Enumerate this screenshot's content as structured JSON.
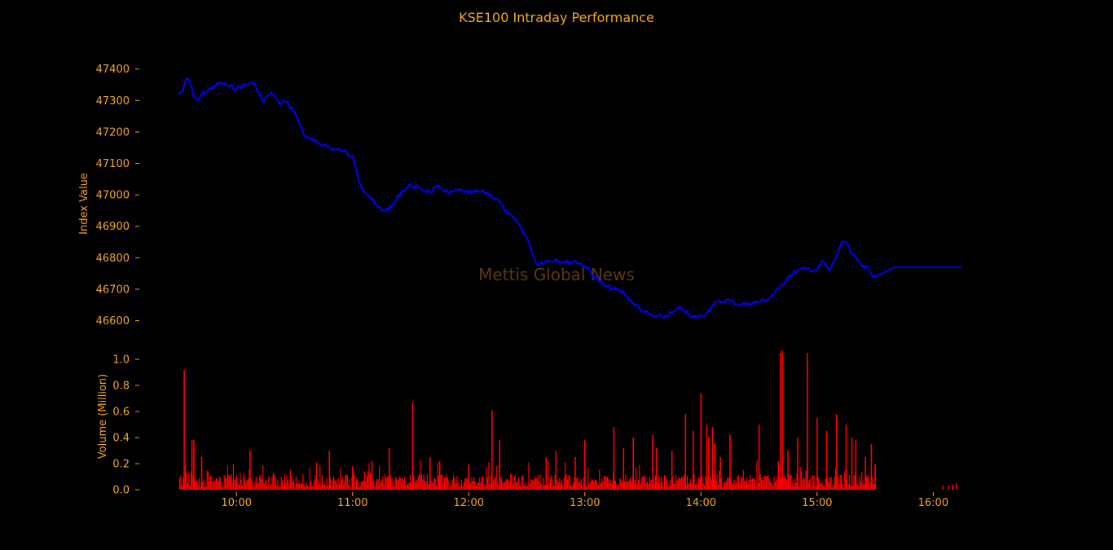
{
  "chart_data": {
    "type": "line",
    "title": "KSE100 Intraday Performance",
    "watermark": "Mettis Global News",
    "colors": {
      "text": "#f5a623",
      "price_line": "#0000ff",
      "volume_bars": "#ff0000",
      "background": "#000000",
      "watermark": "#5a3a12"
    },
    "grid": false,
    "xlim": [
      "09:30",
      "16:15"
    ],
    "x_ticks": [
      "10:00",
      "11:00",
      "12:00",
      "13:00",
      "14:00",
      "15:00",
      "16:00"
    ],
    "panels": [
      {
        "id": "price",
        "ylabel": "Index Value",
        "ylim": [
          46560,
          47420
        ],
        "y_ticks": [
          "46600",
          "46700",
          "46800",
          "46900",
          "47000",
          "47100",
          "47200",
          "47300",
          "47400"
        ],
        "series": [
          {
            "type": "line",
            "x": [
              "09:30",
              "09:32",
              "09:34",
              "09:36",
              "09:38",
              "09:40",
              "09:42",
              "09:45",
              "09:48",
              "09:52",
              "09:56",
              "10:00",
              "10:04",
              "10:08",
              "10:10",
              "10:12",
              "10:14",
              "10:16",
              "10:18",
              "10:20",
              "10:22",
              "10:24",
              "10:27",
              "10:30",
              "10:33",
              "10:36",
              "10:40",
              "10:45",
              "10:50",
              "10:55",
              "11:00",
              "11:02",
              "11:04",
              "11:06",
              "11:08",
              "11:10",
              "11:13",
              "11:16",
              "11:20",
              "11:25",
              "11:30",
              "11:35",
              "11:40",
              "11:45",
              "11:50",
              "11:55",
              "12:00",
              "12:05",
              "12:10",
              "12:15",
              "12:20",
              "12:25",
              "12:30",
              "12:35",
              "12:40",
              "12:45",
              "12:50",
              "12:55",
              "13:00",
              "13:05",
              "13:10",
              "13:15",
              "13:20",
              "13:25",
              "13:30",
              "13:35",
              "13:40",
              "13:45",
              "13:50",
              "13:55",
              "14:00",
              "14:03",
              "14:06",
              "14:10",
              "14:15",
              "14:20",
              "14:25",
              "14:30",
              "14:35",
              "14:40",
              "14:45",
              "14:50",
              "14:55",
              "15:00",
              "15:03",
              "15:06",
              "15:09",
              "15:12",
              "15:15",
              "15:18",
              "15:21",
              "15:24",
              "15:27",
              "15:30",
              "15:40",
              "15:50",
              "16:00",
              "16:15"
            ],
            "y": [
              47320,
              47330,
              47370,
              47355,
              47310,
              47300,
              47320,
              47330,
              47345,
              47355,
              47345,
              47338,
              47350,
              47355,
              47345,
              47320,
              47295,
              47315,
              47325,
              47310,
              47290,
              47300,
              47285,
              47265,
              47220,
              47180,
              47170,
              47160,
              47145,
              47140,
              47125,
              47080,
              47030,
              47010,
              47000,
              46985,
              46960,
              46950,
              46960,
              47010,
              47030,
              47020,
              47010,
              47025,
              47005,
              47015,
              47005,
              47010,
              47005,
              46985,
              46940,
              46915,
              46865,
              46780,
              46790,
              46795,
              46785,
              46790,
              46775,
              46740,
              46710,
              46700,
              46690,
              46655,
              46630,
              46615,
              46610,
              46625,
              46640,
              46610,
              46615,
              46625,
              46650,
              46660,
              46665,
              46650,
              46655,
              46660,
              46670,
              46700,
              46740,
              46760,
              46765,
              46760,
              46790,
              46760,
              46790,
              46840,
              46850,
              46810,
              46790,
              46775,
              46760,
              46740,
              46770,
              46770,
              46770,
              46770
            ]
          }
        ]
      },
      {
        "id": "volume",
        "ylabel": "Volume (Million)",
        "ylim": [
          0,
          1.05
        ],
        "y_ticks": [
          "0.0",
          "0.2",
          "0.4",
          "0.6",
          "0.8",
          "1.0"
        ],
        "series": [
          {
            "type": "bar",
            "times": [
              "09:33",
              "09:37",
              "09:38",
              "09:42",
              "10:07",
              "10:48",
              "11:00",
              "11:10",
              "11:19",
              "11:31",
              "11:40",
              "11:45",
              "12:00",
              "12:12",
              "12:16",
              "12:40",
              "12:45",
              "12:55",
              "13:00",
              "13:15",
              "13:20",
              "13:25",
              "13:35",
              "13:37",
              "13:45",
              "13:52",
              "13:56",
              "14:00",
              "14:03",
              "14:04",
              "14:06",
              "14:07",
              "14:10",
              "14:15",
              "14:30",
              "14:40",
              "14:41",
              "14:42",
              "14:45",
              "14:50",
              "14:55",
              "15:00",
              "15:05",
              "15:10",
              "15:15",
              "15:18",
              "15:20",
              "15:25",
              "15:28",
              "15:30",
              "16:05",
              "16:08",
              "16:10",
              "16:12"
            ],
            "values": [
              0.92,
              0.38,
              0.38,
              0.25,
              0.3,
              0.3,
              0.18,
              0.22,
              0.32,
              0.67,
              0.25,
              0.22,
              0.2,
              0.61,
              0.38,
              0.25,
              0.3,
              0.25,
              0.38,
              0.48,
              0.32,
              0.4,
              0.42,
              0.32,
              0.3,
              0.58,
              0.45,
              0.74,
              0.5,
              0.4,
              0.48,
              0.35,
              0.25,
              0.42,
              0.5,
              0.22,
              1.05,
              1.07,
              0.3,
              0.4,
              1.05,
              0.55,
              0.45,
              0.58,
              0.5,
              0.4,
              0.38,
              0.25,
              0.35,
              0.2,
              0.03,
              0.03,
              0.04,
              0.05
            ]
          }
        ]
      }
    ]
  }
}
